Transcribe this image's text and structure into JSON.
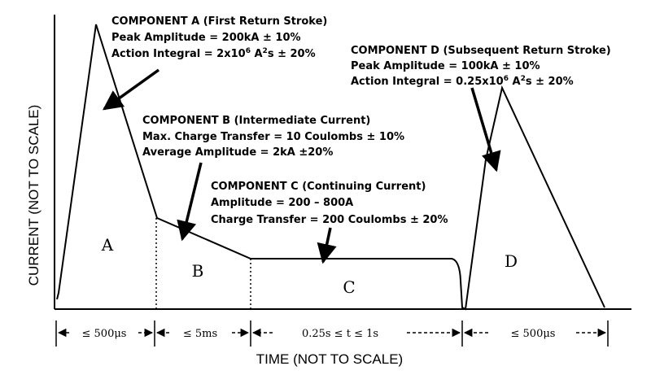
{
  "y_axis_label": "CURRENT (NOT TO SCALE)",
  "x_axis_label": "TIME (NOT TO SCALE)",
  "segment_letters": {
    "a": "A",
    "b": "B",
    "c": "C",
    "d": "D"
  },
  "components": {
    "a": {
      "title": "COMPONENT A (First Return Stroke)",
      "line1": "Peak Amplitude = 200kA ± 10%",
      "line2_prefix": "Action Integral = 2x10",
      "line2_exp": "6",
      "line2_unit": " A",
      "line2_unit_exp": "2",
      "line2_suffix": "s ± 20%"
    },
    "b": {
      "title": "COMPONENT B (Intermediate Current)",
      "line1": "Max. Charge Transfer = 10 Coulombs ± 10%",
      "line2": "Average Amplitude = 2kA ±20%"
    },
    "c": {
      "title": "COMPONENT C (Continuing Current)",
      "line1": "Amplitude = 200 – 800A",
      "line2": "Charge Transfer = 200 Coulombs ± 20%"
    },
    "d": {
      "title": "COMPONENT D (Subsequent Return Stroke)",
      "line1": "Peak Amplitude = 100kA ± 10%",
      "line2_prefix": "Action Integral = 0.25x10",
      "line2_exp": "6",
      "line2_unit": " A",
      "line2_unit_exp": "2",
      "line2_suffix": "s ± 20%"
    }
  },
  "durations": {
    "a": "≤ 500μs",
    "b": "≤ 5ms",
    "c": "0.25s ≤ t ≤ 1s",
    "d": "≤ 500μs"
  }
}
